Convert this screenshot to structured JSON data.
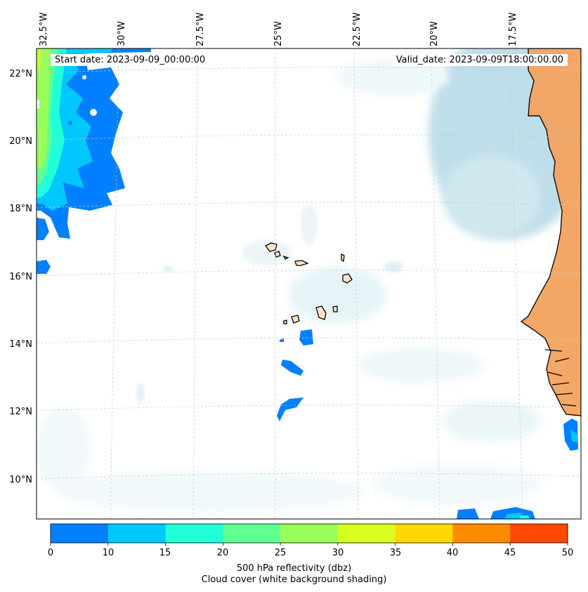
{
  "map": {
    "start_date_label": "Start date: 2023-09-09_00:00:00",
    "valid_date_label": "Valid_date: 2023-09-09T18:00:00.00",
    "longitude_labels": [
      "32.5°W",
      "30°W",
      "27.5°W",
      "25°W",
      "22.5°W",
      "20°W",
      "17.5°W"
    ],
    "latitude_labels": [
      "22°N",
      "20°N",
      "18°N",
      "16°N",
      "14°N",
      "12°N",
      "10°N"
    ],
    "colors": {
      "land": "#f4a460",
      "island_land": "#fde2c8",
      "cloud": "#add8e6",
      "coastline": "#000000",
      "gridline": "#c8c8c8"
    }
  },
  "colorbar": {
    "tick_labels": [
      "0",
      "10",
      "15",
      "20",
      "25",
      "30",
      "35",
      "40",
      "45",
      "50"
    ],
    "colors": [
      "#0080ff",
      "#00c8ff",
      "#20ffd8",
      "#60ff90",
      "#98ff58",
      "#d8ff20",
      "#ffd800",
      "#ff8c00",
      "#ff4800"
    ],
    "label_line1": "500 hPa reflectivity (dbz)",
    "label_line2": "Cloud cover (white background shading)"
  }
}
